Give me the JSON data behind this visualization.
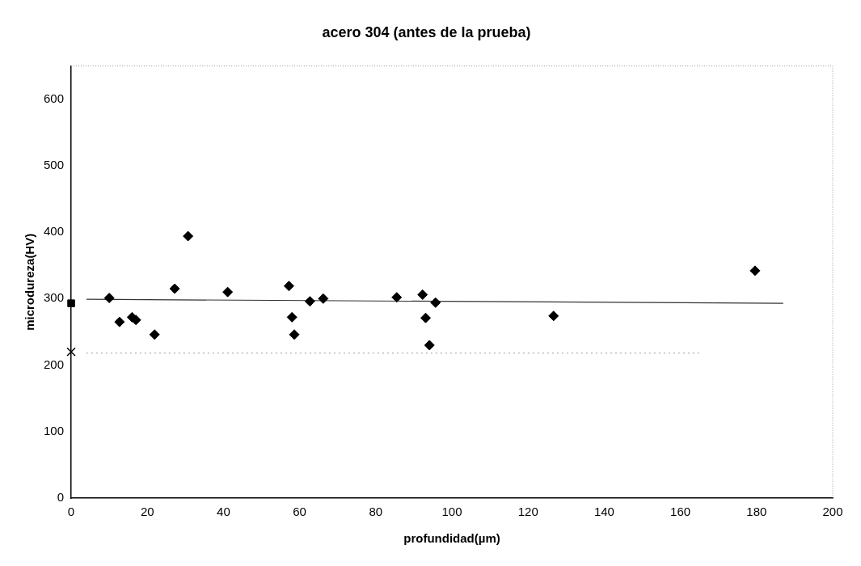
{
  "chart_data": {
    "type": "scatter",
    "title": "acero 304 (antes de la prueba)",
    "xlabel": "profundidad(µm)",
    "ylabel": "microdureza(HV)",
    "xlim": [
      0,
      200
    ],
    "xticks": [
      0,
      20,
      40,
      60,
      80,
      100,
      120,
      140,
      160,
      180,
      200
    ],
    "ylim": [
      0,
      650
    ],
    "yticks": [
      0,
      100,
      200,
      300,
      400,
      500,
      600
    ],
    "grid": false,
    "legend": false,
    "series": [
      {
        "type": "scatter",
        "marker": "diamond",
        "color": "#000000",
        "x": [
          10,
          12.7,
          16,
          17,
          21.9,
          27.2,
          30.7,
          41.1,
          57.2,
          58,
          58.6,
          62.7,
          66.2,
          85.5,
          92.3,
          93.1,
          94.1,
          95.7,
          126.7,
          179.6
        ],
        "values": [
          301,
          265,
          272,
          268,
          246,
          315,
          394,
          310,
          319,
          272,
          246,
          296,
          300,
          302,
          306,
          271,
          230,
          294,
          274,
          342
        ]
      },
      {
        "type": "scatter",
        "marker": "square",
        "color": "#000000",
        "x": [
          0
        ],
        "values": [
          293
        ]
      },
      {
        "type": "scatter",
        "marker": "cross",
        "color": "#000000",
        "x": [
          0
        ],
        "values": [
          220
        ]
      },
      {
        "type": "line",
        "marker": "none",
        "line_style": "solid",
        "color": "#333333",
        "x": [
          4,
          187
        ],
        "values": [
          299,
          293
        ]
      },
      {
        "type": "line",
        "marker": "none",
        "line_style": "dotted",
        "color": "#999999",
        "x": [
          4,
          165
        ],
        "values": [
          218,
          218
        ]
      }
    ]
  }
}
